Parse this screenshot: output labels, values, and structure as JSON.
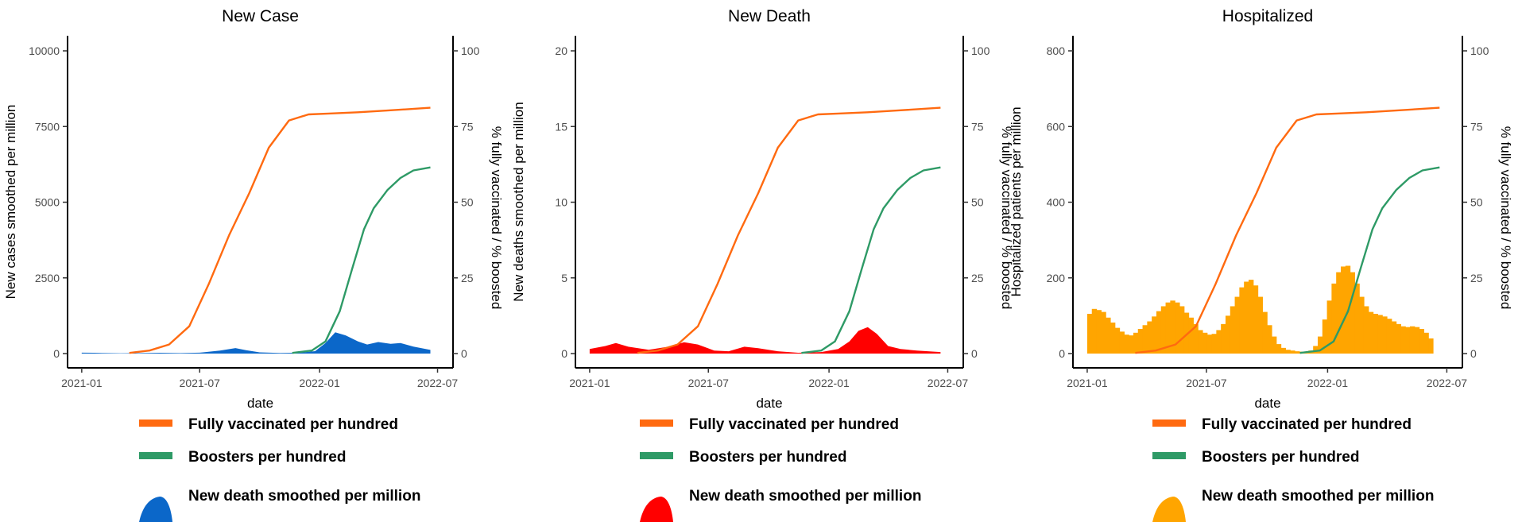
{
  "colors": {
    "fully_vaccinated": "#ff6a10",
    "boosters": "#2e9a66",
    "new_case_fill": "#0b67c9",
    "new_death_fill": "#ff0000",
    "hospitalized_fill": "#ffa500"
  },
  "chart_data": [
    {
      "type": "area",
      "title": "New Case",
      "xlabel": "date",
      "ylabel": "New cases smoothed per million",
      "y2label": "% fully vaccinated / % boosted",
      "x_ticks": [
        "2021-01",
        "2021-07",
        "2022-01",
        "2022-07"
      ],
      "xlim": [
        "2020-12-20",
        "2022-07-15"
      ],
      "ylim": [
        0,
        10000
      ],
      "y_ticks": [
        0,
        2500,
        5000,
        7500,
        10000
      ],
      "y2lim": [
        0,
        100
      ],
      "y2_ticks": [
        0,
        25,
        50,
        75,
        100
      ],
      "legend": [
        "Fully vaccinated per hundred",
        "Boosters per hundred",
        "New death smoothed per million"
      ],
      "legend_placement": "below",
      "area_series": {
        "name": "New death smoothed per million",
        "color_key": "new_case_fill",
        "style": "area",
        "points": [
          [
            "2021-01-01",
            30
          ],
          [
            "2021-01-20",
            25
          ],
          [
            "2021-02-10",
            15
          ],
          [
            "2021-03-01",
            10
          ],
          [
            "2021-04-01",
            15
          ],
          [
            "2021-05-01",
            25
          ],
          [
            "2021-06-01",
            15
          ],
          [
            "2021-07-01",
            30
          ],
          [
            "2021-08-01",
            100
          ],
          [
            "2021-08-25",
            180
          ],
          [
            "2021-09-10",
            110
          ],
          [
            "2021-10-01",
            40
          ],
          [
            "2021-11-01",
            20
          ],
          [
            "2021-12-01",
            30
          ],
          [
            "2021-12-25",
            80
          ],
          [
            "2022-01-10",
            350
          ],
          [
            "2022-01-25",
            700
          ],
          [
            "2022-02-10",
            600
          ],
          [
            "2022-03-01",
            400
          ],
          [
            "2022-03-15",
            300
          ],
          [
            "2022-04-01",
            380
          ],
          [
            "2022-04-20",
            320
          ],
          [
            "2022-05-05",
            350
          ],
          [
            "2022-05-25",
            230
          ],
          [
            "2022-06-20",
            120
          ]
        ]
      },
      "line_series": [
        {
          "name": "Fully vaccinated per hundred",
          "color_key": "fully_vaccinated",
          "points": [
            [
              "2021-03-15",
              0.2
            ],
            [
              "2021-04-15",
              1
            ],
            [
              "2021-05-15",
              3
            ],
            [
              "2021-06-15",
              9
            ],
            [
              "2021-07-15",
              23
            ],
            [
              "2021-08-15",
              39
            ],
            [
              "2021-09-15",
              53
            ],
            [
              "2021-10-15",
              68
            ],
            [
              "2021-11-15",
              77
            ],
            [
              "2021-12-15",
              79
            ],
            [
              "2022-01-15",
              79.3
            ],
            [
              "2022-03-01",
              79.7
            ],
            [
              "2022-04-15",
              80.3
            ],
            [
              "2022-06-20",
              81.2
            ]
          ]
        },
        {
          "name": "Boosters per hundred",
          "color_key": "boosters",
          "points": [
            [
              "2021-11-20",
              0.2
            ],
            [
              "2021-12-20",
              1
            ],
            [
              "2022-01-10",
              4
            ],
            [
              "2022-02-01",
              14
            ],
            [
              "2022-02-20",
              28
            ],
            [
              "2022-03-10",
              41
            ],
            [
              "2022-03-25",
              48
            ],
            [
              "2022-04-15",
              54
            ],
            [
              "2022-05-05",
              58
            ],
            [
              "2022-05-25",
              60.5
            ],
            [
              "2022-06-20",
              61.5
            ]
          ]
        }
      ]
    },
    {
      "type": "area",
      "title": "New Death",
      "xlabel": "date",
      "ylabel": "New deaths smoothed per million",
      "y2label": "% fully vaccinated / % boosted",
      "x_ticks": [
        "2021-01",
        "2021-07",
        "2022-01",
        "2022-07"
      ],
      "xlim": [
        "2020-12-20",
        "2022-07-15"
      ],
      "ylim": [
        0,
        20
      ],
      "y_ticks": [
        0,
        5,
        10,
        15,
        20
      ],
      "y2lim": [
        0,
        100
      ],
      "y2_ticks": [
        0,
        25,
        50,
        75,
        100
      ],
      "legend": [
        "Fully vaccinated per hundred",
        "Boosters per hundred",
        "New death smoothed per million"
      ],
      "legend_placement": "below",
      "area_series": {
        "name": "New death smoothed per million",
        "color_key": "new_death_fill",
        "style": "area",
        "points": [
          [
            "2021-01-01",
            0.3
          ],
          [
            "2021-01-25",
            0.5
          ],
          [
            "2021-02-10",
            0.7
          ],
          [
            "2021-03-01",
            0.45
          ],
          [
            "2021-04-01",
            0.25
          ],
          [
            "2021-05-01",
            0.45
          ],
          [
            "2021-05-25",
            0.75
          ],
          [
            "2021-06-15",
            0.6
          ],
          [
            "2021-07-10",
            0.2
          ],
          [
            "2021-08-01",
            0.15
          ],
          [
            "2021-08-25",
            0.45
          ],
          [
            "2021-09-15",
            0.35
          ],
          [
            "2021-10-15",
            0.15
          ],
          [
            "2021-11-15",
            0.05
          ],
          [
            "2021-12-20",
            0.1
          ],
          [
            "2022-01-15",
            0.3
          ],
          [
            "2022-02-01",
            0.8
          ],
          [
            "2022-02-15",
            1.5
          ],
          [
            "2022-03-01",
            1.75
          ],
          [
            "2022-03-15",
            1.3
          ],
          [
            "2022-04-01",
            0.5
          ],
          [
            "2022-04-20",
            0.3
          ],
          [
            "2022-05-15",
            0.2
          ],
          [
            "2022-06-20",
            0.1
          ]
        ]
      },
      "line_series": [
        {
          "name": "Fully vaccinated per hundred",
          "color_key": "fully_vaccinated",
          "points": [
            [
              "2021-03-15",
              0.2
            ],
            [
              "2021-04-15",
              1
            ],
            [
              "2021-05-15",
              3
            ],
            [
              "2021-06-15",
              9
            ],
            [
              "2021-07-15",
              23
            ],
            [
              "2021-08-15",
              39
            ],
            [
              "2021-09-15",
              53
            ],
            [
              "2021-10-15",
              68
            ],
            [
              "2021-11-15",
              77
            ],
            [
              "2021-12-15",
              79
            ],
            [
              "2022-01-15",
              79.3
            ],
            [
              "2022-03-01",
              79.7
            ],
            [
              "2022-04-15",
              80.3
            ],
            [
              "2022-06-20",
              81.2
            ]
          ]
        },
        {
          "name": "Boosters per hundred",
          "color_key": "boosters",
          "points": [
            [
              "2021-11-20",
              0.2
            ],
            [
              "2021-12-20",
              1
            ],
            [
              "2022-01-10",
              4
            ],
            [
              "2022-02-01",
              14
            ],
            [
              "2022-02-20",
              28
            ],
            [
              "2022-03-10",
              41
            ],
            [
              "2022-03-25",
              48
            ],
            [
              "2022-04-15",
              54
            ],
            [
              "2022-05-05",
              58
            ],
            [
              "2022-05-25",
              60.5
            ],
            [
              "2022-06-20",
              61.5
            ]
          ]
        }
      ]
    },
    {
      "type": "bar",
      "title": "Hospitalized",
      "xlabel": "date",
      "ylabel": "Hospitalized patients per million",
      "y2label": "% fully vaccinated / % boosted",
      "x_ticks": [
        "2021-01",
        "2021-07",
        "2022-01",
        "2022-07"
      ],
      "xlim": [
        "2020-12-20",
        "2022-07-15"
      ],
      "ylim": [
        0,
        800
      ],
      "y_ticks": [
        0,
        200,
        400,
        600,
        800
      ],
      "y2lim": [
        0,
        100
      ],
      "y2_ticks": [
        0,
        25,
        50,
        75,
        100
      ],
      "legend": [
        "Fully vaccinated per hundred",
        "Boosters per hundred",
        "New death smoothed per million"
      ],
      "legend_placement": "below",
      "area_series": {
        "name": "New death smoothed per million",
        "color_key": "hospitalized_fill",
        "style": "bars",
        "start": "2021-01-01",
        "step_days": 7,
        "values": [
          105,
          118,
          115,
          110,
          95,
          82,
          68,
          58,
          50,
          48,
          55,
          65,
          75,
          85,
          98,
          112,
          125,
          135,
          140,
          135,
          125,
          108,
          95,
          78,
          62,
          55,
          50,
          52,
          62,
          78,
          100,
          125,
          150,
          175,
          190,
          195,
          180,
          150,
          110,
          75,
          45,
          25,
          15,
          10,
          8,
          6,
          5,
          5,
          8,
          20,
          45,
          90,
          140,
          185,
          215,
          230,
          232,
          215,
          185,
          150,
          125,
          110,
          105,
          102,
          98,
          92,
          85,
          78,
          72,
          70,
          72,
          70,
          65,
          55,
          40
        ]
      },
      "line_series": [
        {
          "name": "Fully vaccinated per hundred",
          "color_key": "fully_vaccinated",
          "points": [
            [
              "2021-03-15",
              0.2
            ],
            [
              "2021-04-15",
              1
            ],
            [
              "2021-05-15",
              3
            ],
            [
              "2021-06-15",
              9
            ],
            [
              "2021-07-15",
              23
            ],
            [
              "2021-08-15",
              39
            ],
            [
              "2021-09-15",
              53
            ],
            [
              "2021-10-15",
              68
            ],
            [
              "2021-11-15",
              77
            ],
            [
              "2021-12-15",
              79
            ],
            [
              "2022-01-15",
              79.3
            ],
            [
              "2022-03-01",
              79.7
            ],
            [
              "2022-04-15",
              80.3
            ],
            [
              "2022-06-20",
              81.2
            ]
          ]
        },
        {
          "name": "Boosters per hundred",
          "color_key": "boosters",
          "points": [
            [
              "2021-11-20",
              0.2
            ],
            [
              "2021-12-20",
              1
            ],
            [
              "2022-01-10",
              4
            ],
            [
              "2022-02-01",
              14
            ],
            [
              "2022-02-20",
              28
            ],
            [
              "2022-03-10",
              41
            ],
            [
              "2022-03-25",
              48
            ],
            [
              "2022-04-15",
              54
            ],
            [
              "2022-05-05",
              58
            ],
            [
              "2022-05-25",
              60.5
            ],
            [
              "2022-06-20",
              61.5
            ]
          ]
        }
      ]
    }
  ]
}
